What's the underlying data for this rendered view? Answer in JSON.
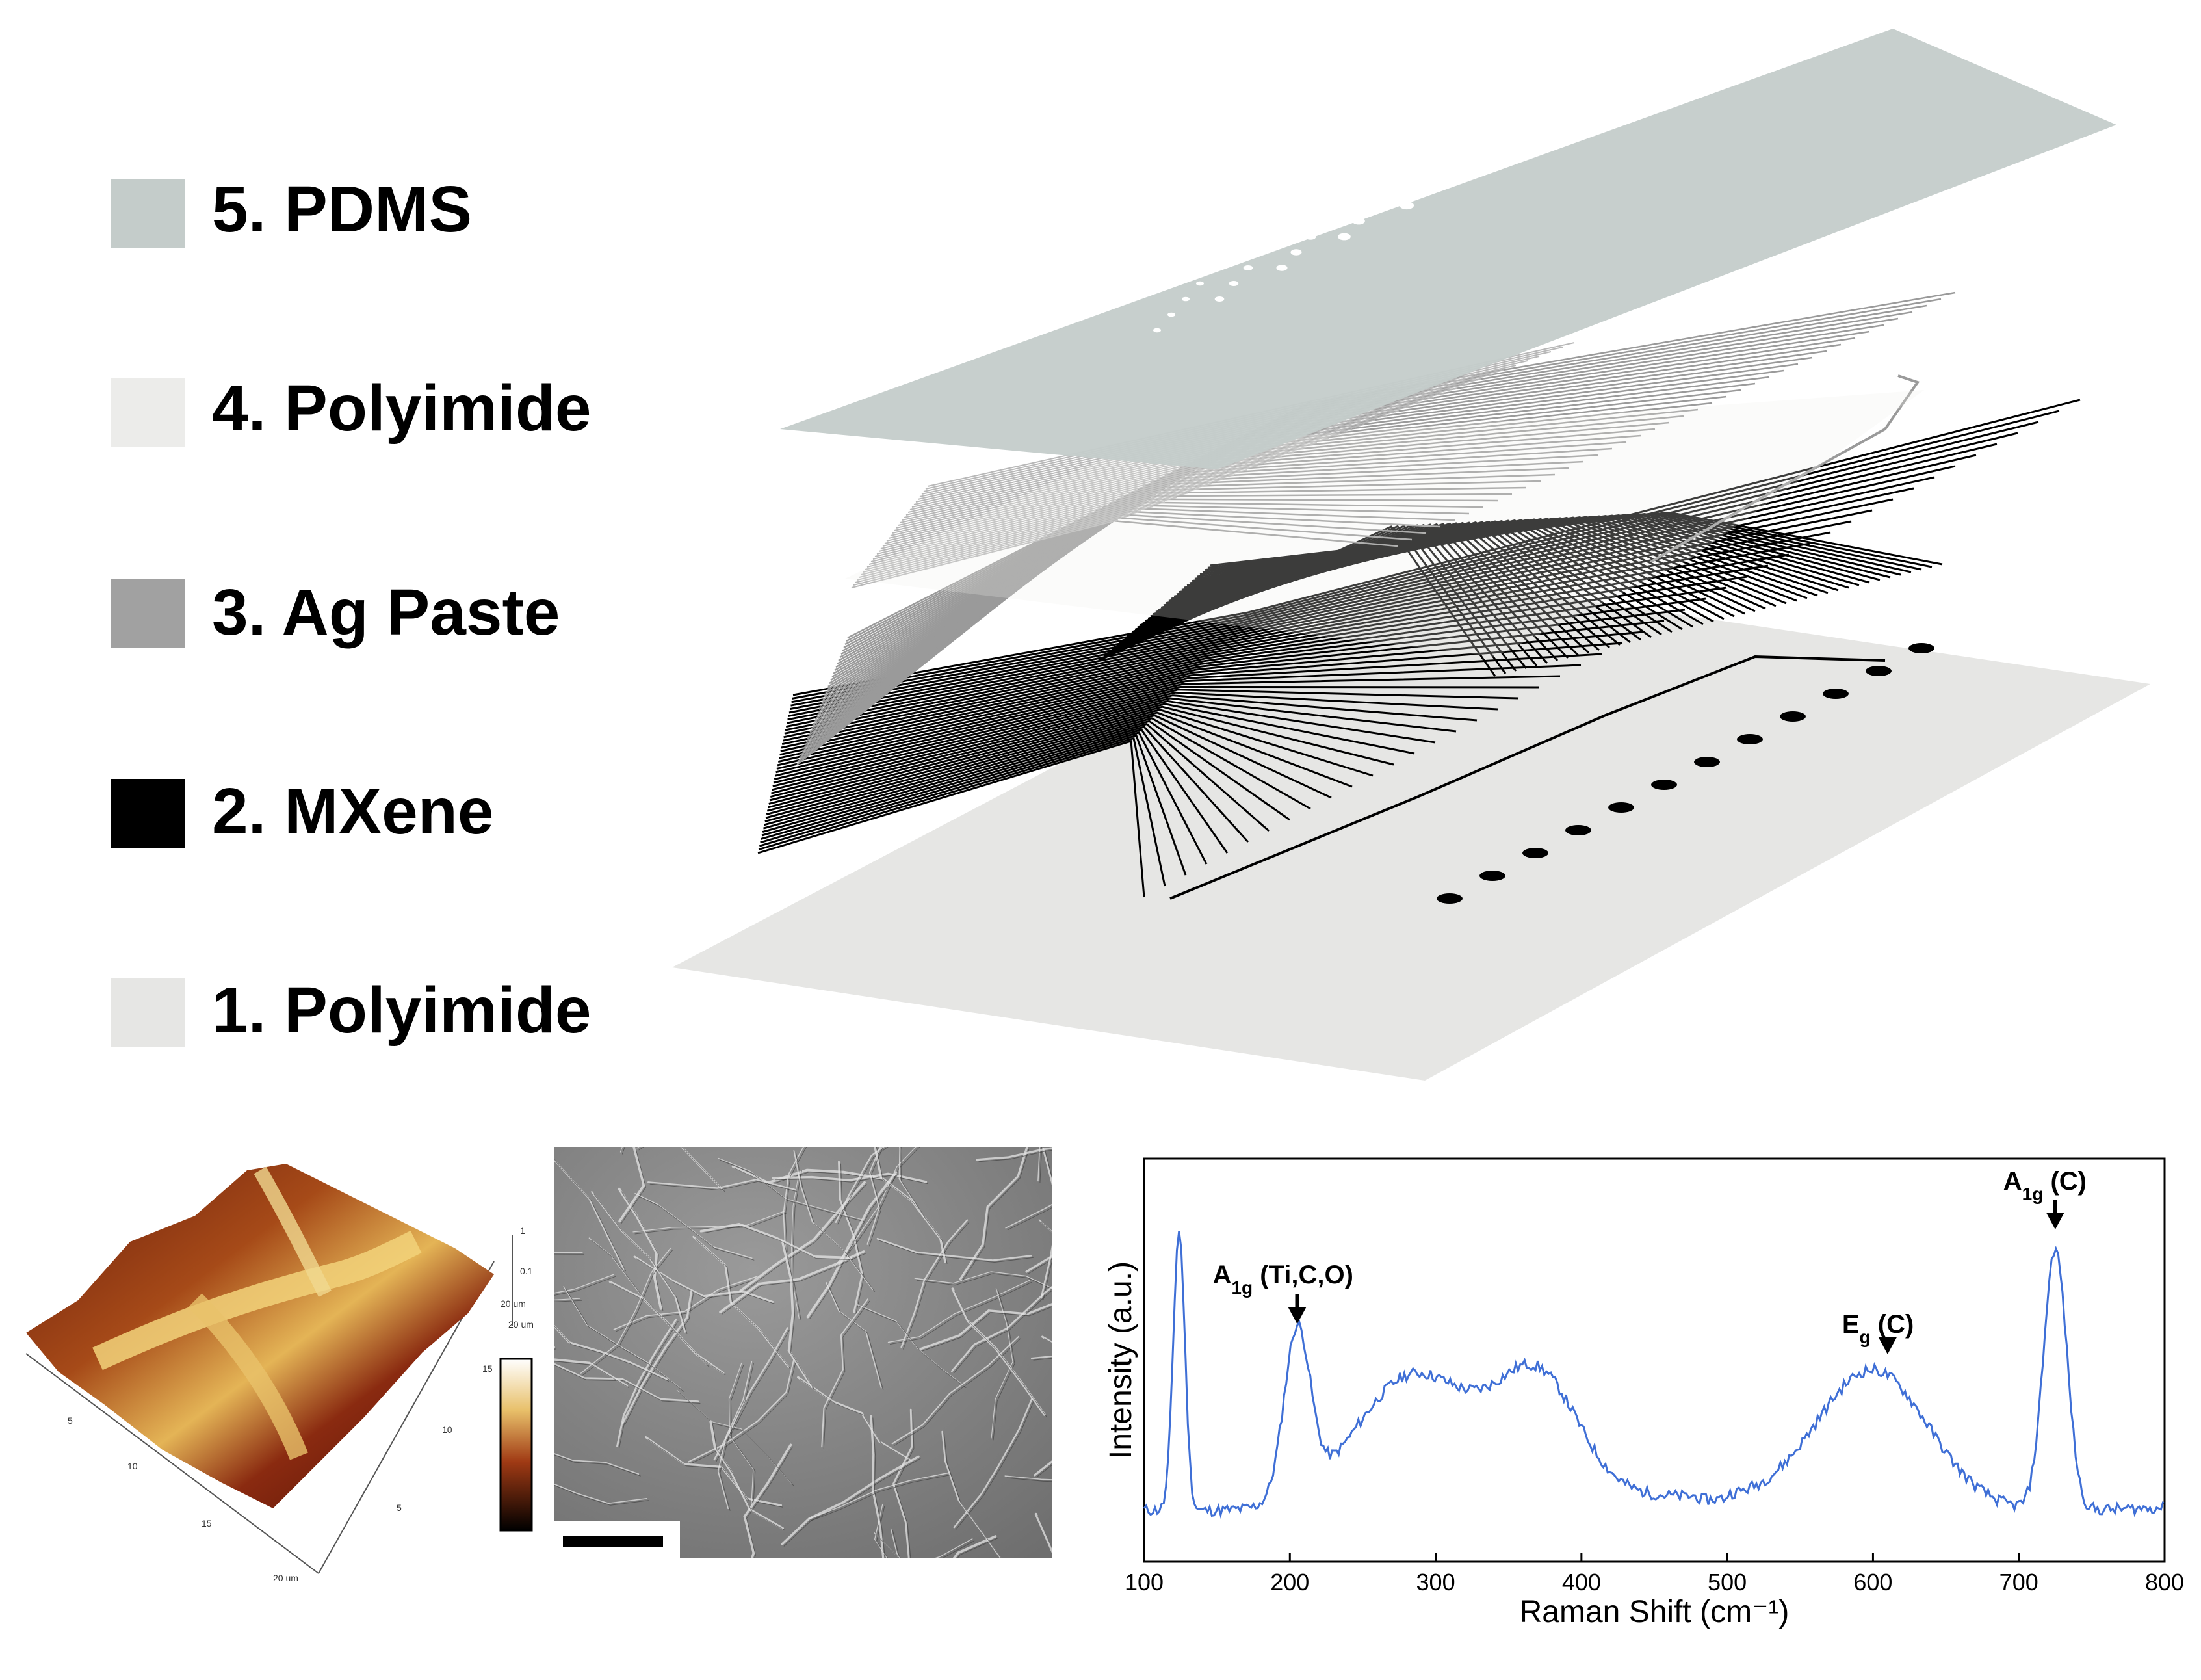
{
  "legend": {
    "items": [
      {
        "label": "5. PDMS",
        "color": "#c4ccca"
      },
      {
        "label": "4. Polyimide",
        "color": "#ececea"
      },
      {
        "label": "3. Ag Paste",
        "color": "#a1a1a1"
      },
      {
        "label": "2. MXene",
        "color": "#000000"
      },
      {
        "label": "1. Polyimide",
        "color": "#e6e6e4"
      }
    ]
  },
  "afm": {
    "scale_top": "1",
    "scale_mid": "0.1",
    "axis_right_a": "20 um",
    "axis_right_b": "20 um",
    "axis_left_ticks": [
      "5",
      "10",
      "15",
      "20 um"
    ],
    "axis_right_ticks": [
      "10",
      "5"
    ],
    "colorbar_label": "15",
    "colorbar_bottom": ""
  },
  "chart_data": {
    "type": "line",
    "xlabel": "Raman Shift (cm⁻¹)",
    "ylabel": "Intensity (a.u.)",
    "xlim": [
      100,
      800
    ],
    "ylim": [
      0,
      1
    ],
    "x_ticks": [
      100,
      200,
      300,
      400,
      500,
      600,
      700,
      800
    ],
    "color": "#3f6fd6",
    "peaks": [
      {
        "x": 124,
        "y": 0.88
      },
      {
        "x": 205,
        "y": 0.58
      },
      {
        "x": 285,
        "y": 0.48
      },
      {
        "x": 370,
        "y": 0.45
      },
      {
        "x": 600,
        "y": 0.5
      },
      {
        "x": 725,
        "y": 0.83
      }
    ],
    "annotations": [
      {
        "main": "A",
        "sub": "1g",
        "rest": " (Ti,C,O)",
        "x": 205
      },
      {
        "main": "E",
        "sub": "g",
        "rest": " (C)",
        "x": 610
      },
      {
        "main": "A",
        "sub": "1g",
        "rest": " (C)",
        "x": 725
      }
    ]
  }
}
